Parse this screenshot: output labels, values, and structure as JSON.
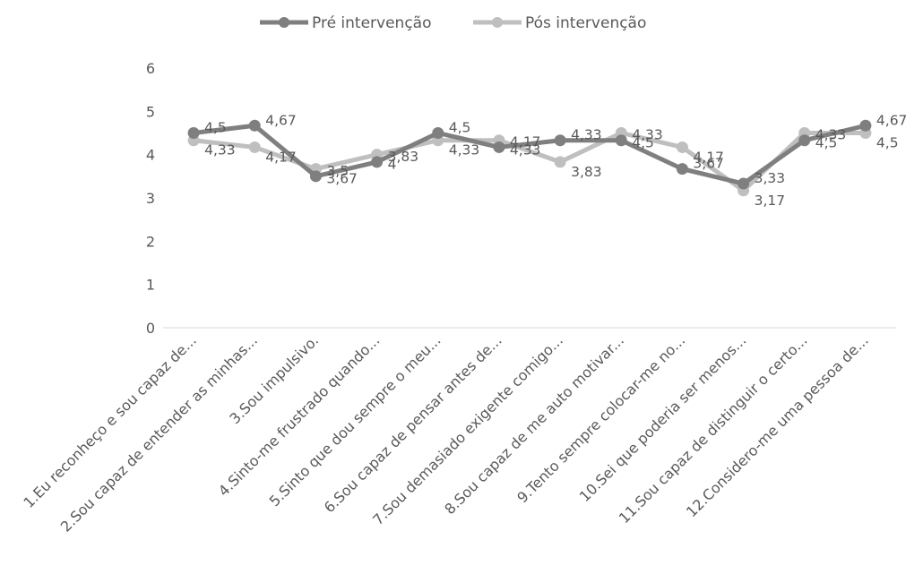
{
  "chart_data": {
    "type": "line",
    "categories": [
      "1.Eu reconheço e sou capaz de...",
      "2.Sou capaz de entender as minhas...",
      "3.Sou impulsivo.",
      "4.Sinto-me frustrado quando...",
      "5.Sinto que dou sempre o meu...",
      "6.Sou capaz de pensar antes de...",
      "7.Sou demasiado exigente comigo...",
      "8.Sou capaz de me auto motivar...",
      "9.Tento sempre colocar-me no...",
      "10.Sei que poderia ser menos...",
      "11.Sou capaz de distinguir o certo...",
      "12.Considero-me uma pessoa de..."
    ],
    "series": [
      {
        "name": "Pré intervenção",
        "color": "#7f7f7f",
        "values": [
          4.5,
          4.67,
          3.5,
          3.83,
          4.5,
          4.17,
          4.33,
          4.33,
          3.67,
          3.33,
          4.33,
          4.67
        ],
        "labels": [
          "4,5",
          "4,67",
          "3,5",
          "3,83",
          "4,5",
          "4,17",
          "4,33",
          "4,33",
          "3,67",
          "3,33",
          "4,33",
          "4,67"
        ]
      },
      {
        "name": "Pós intervenção",
        "color": "#bfbfbf",
        "values": [
          4.33,
          4.17,
          3.67,
          4.0,
          4.33,
          4.33,
          3.83,
          4.5,
          4.17,
          3.17,
          4.5,
          4.5
        ],
        "labels": [
          "4,33",
          "4,17",
          "3,67",
          "4",
          "4,33",
          "4,33",
          "3,83",
          "4,5",
          "4,17",
          "3,17",
          "4,5",
          "4,5"
        ]
      }
    ],
    "ylim": [
      0,
      6
    ],
    "yticks": [
      "0",
      "1",
      "2",
      "3",
      "4",
      "5",
      "6"
    ],
    "grid": false,
    "legend_position": "top"
  }
}
